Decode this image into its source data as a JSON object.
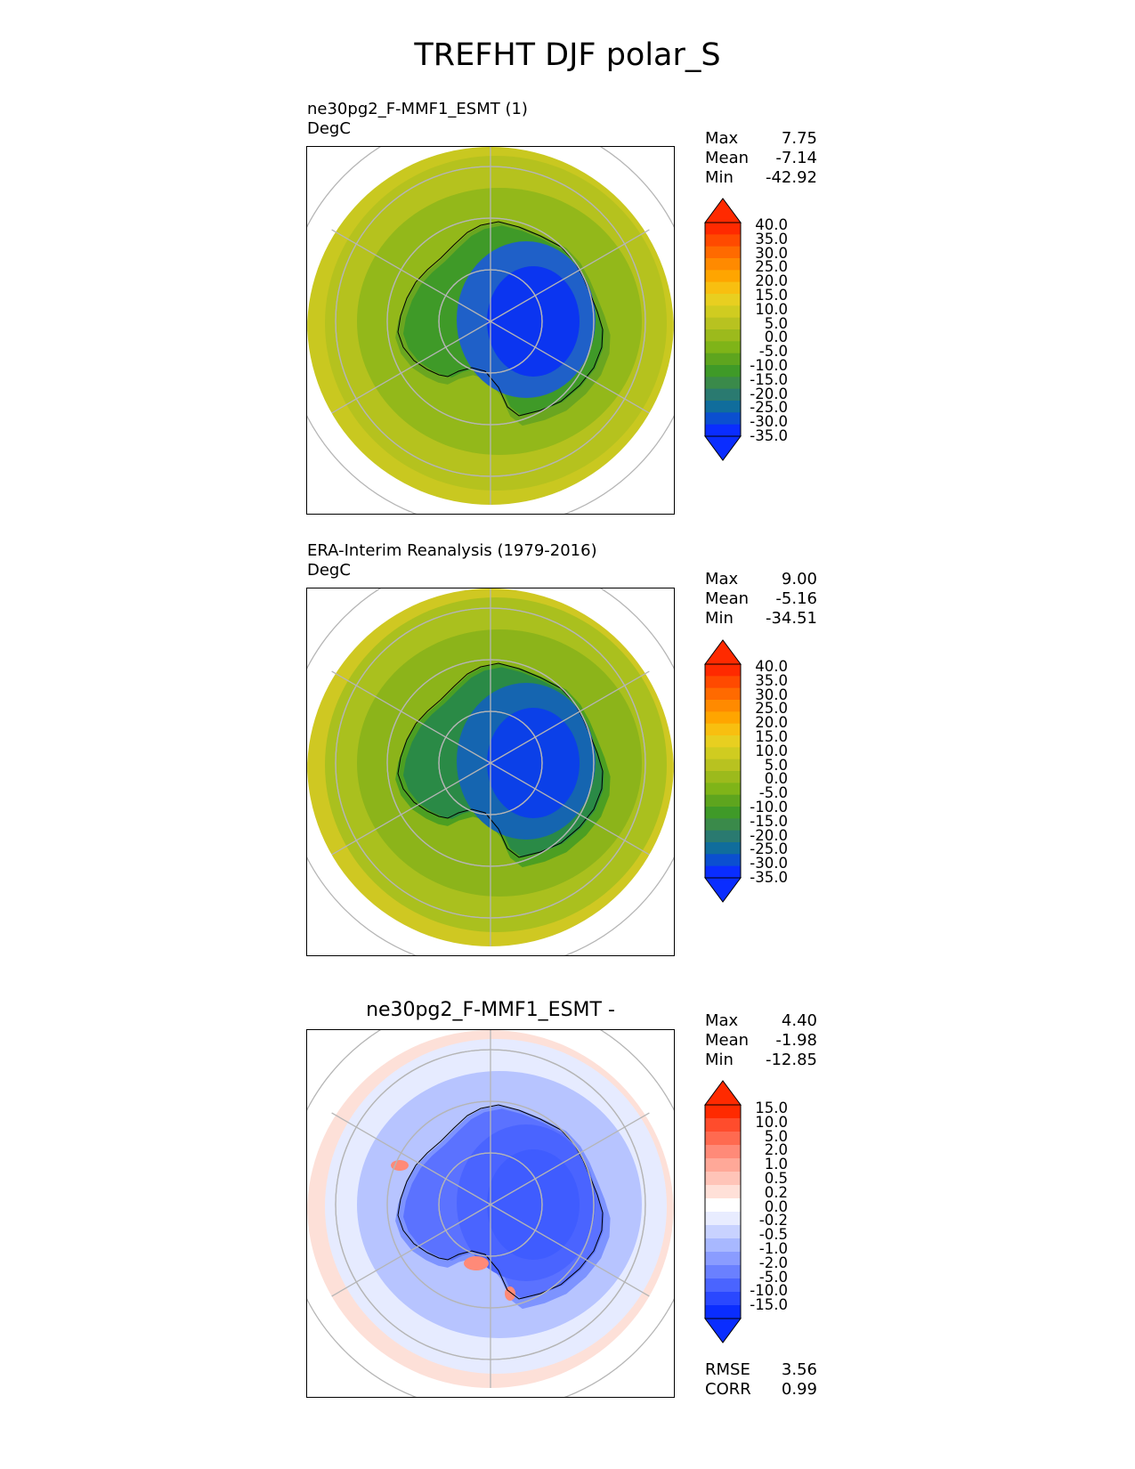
{
  "title": "TREFHT DJF polar_S",
  "panels": [
    {
      "id": "test",
      "title_line1": "ne30pg2_F-MMF1_ESMT (1)",
      "title_line2": "DegC",
      "stats": [
        {
          "label": "Max",
          "value": "7.75"
        },
        {
          "label": "Mean",
          "value": "-7.14"
        },
        {
          "label": "Min",
          "value": "-42.92"
        }
      ],
      "colorbar": {
        "ticks": [
          "40.0",
          "35.0",
          "30.0",
          "25.0",
          "20.0",
          "15.0",
          "10.0",
          "5.0",
          "0.0",
          "-5.0",
          "-10.0",
          "-15.0",
          "-20.0",
          "-25.0",
          "-30.0",
          "-35.0"
        ],
        "colors": [
          "#ff2a00",
          "#ff4a00",
          "#ff6a00",
          "#ff8a00",
          "#ffa500",
          "#f8bf10",
          "#e8cf20",
          "#d0cc20",
          "#b8c220",
          "#9cba1c",
          "#7fb418",
          "#5ea51e",
          "#3f9a28",
          "#3a8a4a",
          "#2a7a70",
          "#106d9c",
          "#0b4fd0",
          "#0a2dff"
        ],
        "top_color": "#ff2a00",
        "bottom_color": "#0a2dff"
      },
      "map_colors": {
        "outer": "#c9c820",
        "mid": "#b5c21e",
        "ring": "#93b81a",
        "coast": "#6aa620",
        "land_edge": "#3f9a28",
        "interior": "#1f60c8",
        "core": "#0b35f0"
      }
    },
    {
      "id": "reference",
      "title_line1": "ERA-Interim Reanalysis (1979-2016)",
      "title_line2": "DegC",
      "stats": [
        {
          "label": "Max",
          "value": "9.00"
        },
        {
          "label": "Mean",
          "value": "-5.16"
        },
        {
          "label": "Min",
          "value": "-34.51"
        }
      ],
      "colorbar": {
        "ticks": [
          "40.0",
          "35.0",
          "30.0",
          "25.0",
          "20.0",
          "15.0",
          "10.0",
          "5.0",
          "0.0",
          "-5.0",
          "-10.0",
          "-15.0",
          "-20.0",
          "-25.0",
          "-30.0",
          "-35.0"
        ],
        "colors": [
          "#ff2a00",
          "#ff4a00",
          "#ff6a00",
          "#ff8a00",
          "#ffa500",
          "#f8bf10",
          "#e8cf20",
          "#d0cc20",
          "#b8c220",
          "#9cba1c",
          "#7fb418",
          "#5ea51e",
          "#3f9a28",
          "#3a8a4a",
          "#2a7a70",
          "#106d9c",
          "#0b4fd0",
          "#0a2dff"
        ],
        "top_color": "#ff2a00",
        "bottom_color": "#0a2dff"
      },
      "map_colors": {
        "outer": "#cfc822",
        "mid": "#aac01e",
        "ring": "#8cb41a",
        "coast": "#4c9f22",
        "land_edge": "#2a8a46",
        "interior": "#1565b0",
        "core": "#0b40e8"
      }
    },
    {
      "id": "diff",
      "title_center": "ne30pg2_F-MMF1_ESMT -",
      "stats": [
        {
          "label": "Max",
          "value": "4.40"
        },
        {
          "label": "Mean",
          "value": "-1.98"
        },
        {
          "label": "Min",
          "value": "-12.85"
        }
      ],
      "colorbar": {
        "ticks": [
          "15.0",
          "10.0",
          "5.0",
          "2.0",
          "1.0",
          "0.5",
          "0.2",
          "0.0",
          "-0.2",
          "-0.5",
          "-1.0",
          "-2.0",
          "-5.0",
          "-10.0",
          "-15.0"
        ],
        "colors": [
          "#ff2a00",
          "#ff4c2c",
          "#ff6a50",
          "#ff8a78",
          "#ffa898",
          "#ffc4b8",
          "#ffe0d8",
          "#ffffff",
          "#e8ecff",
          "#c8d2ff",
          "#a8b8ff",
          "#8a9cff",
          "#6a80ff",
          "#4a64ff",
          "#2a48ff",
          "#0a2dff"
        ],
        "top_color": "#ff2a00",
        "bottom_color": "#0a2dff"
      },
      "map_colors": {
        "outer": "#fde0d8",
        "mid": "#e6ebff",
        "ring": "#b7c4ff",
        "coast": "#7d93ff",
        "land_edge": "#5b72ff",
        "interior": "#4a64ff",
        "core": "#3f5cff",
        "warm_spot": "#ff8a78"
      },
      "extra_stats": [
        {
          "label": "RMSE",
          "value": "3.56"
        },
        {
          "label": "CORR",
          "value": "0.99"
        }
      ]
    }
  ]
}
